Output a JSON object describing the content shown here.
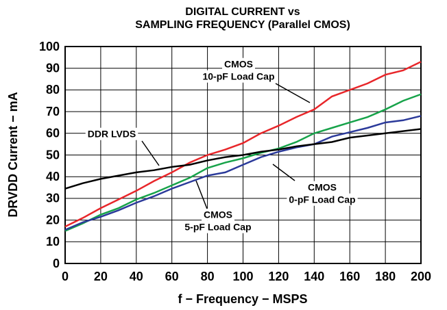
{
  "chart_data": {
    "type": "line",
    "title": [
      "DIGITAL CURRENT vs",
      "SAMPLING FREQUENCY (Parallel CMOS)"
    ],
    "x_label": "f − Frequency − MSPS",
    "y_label": "DRVDD Current − mA",
    "x": [
      0,
      10,
      20,
      30,
      40,
      50,
      60,
      70,
      80,
      90,
      100,
      110,
      120,
      130,
      140,
      150,
      160,
      170,
      180,
      190,
      200
    ],
    "series": [
      {
        "name": "CMOS 10-pF Load Cap",
        "color": "#e8262a",
        "values": [
          17,
          21,
          25.5,
          29.5,
          33.5,
          38,
          42,
          46.5,
          50,
          52.5,
          55.5,
          60,
          63.5,
          67.5,
          71,
          77,
          80,
          83,
          87,
          89,
          93
        ]
      },
      {
        "name": "CMOS 5-pF Load Cap",
        "color": "#17a34a",
        "values": [
          15,
          18.5,
          22.5,
          25.5,
          29.5,
          32.5,
          36,
          39.5,
          44,
          46.5,
          48.5,
          51,
          53,
          56,
          60,
          62.5,
          65,
          67.5,
          71,
          75,
          78
        ]
      },
      {
        "name": "CMOS 0-pF Load Cap",
        "color": "#2b3a9a",
        "values": [
          15.5,
          19,
          21.5,
          24.5,
          28,
          31,
          34.5,
          37.5,
          40.5,
          42,
          45.5,
          49,
          51.5,
          53.5,
          55,
          58.5,
          60.5,
          62.5,
          65,
          66,
          68
        ]
      },
      {
        "name": "DDR LVDS",
        "color": "#000000",
        "values": [
          34.5,
          37,
          39,
          40.5,
          42,
          43,
          44.5,
          45.5,
          47.5,
          49,
          50,
          51.5,
          52.5,
          54,
          55,
          56,
          58,
          59,
          60,
          61,
          62
        ]
      }
    ],
    "annotations": [
      {
        "lines": [
          "CMOS",
          "10-pF Load Cap"
        ]
      },
      {
        "lines": [
          "DDR LVDS"
        ]
      },
      {
        "lines": [
          "CMOS",
          "0-pF Load Cap"
        ]
      },
      {
        "lines": [
          "CMOS",
          "5-pF Load Cap"
        ]
      }
    ],
    "xlim": [
      0,
      200
    ],
    "xticks": [
      0,
      20,
      40,
      60,
      80,
      100,
      120,
      140,
      160,
      180,
      200
    ],
    "ylim": [
      0,
      100
    ],
    "yticks": [
      0,
      10,
      20,
      30,
      40,
      50,
      60,
      70,
      80,
      90,
      100
    ],
    "grid": true
  }
}
